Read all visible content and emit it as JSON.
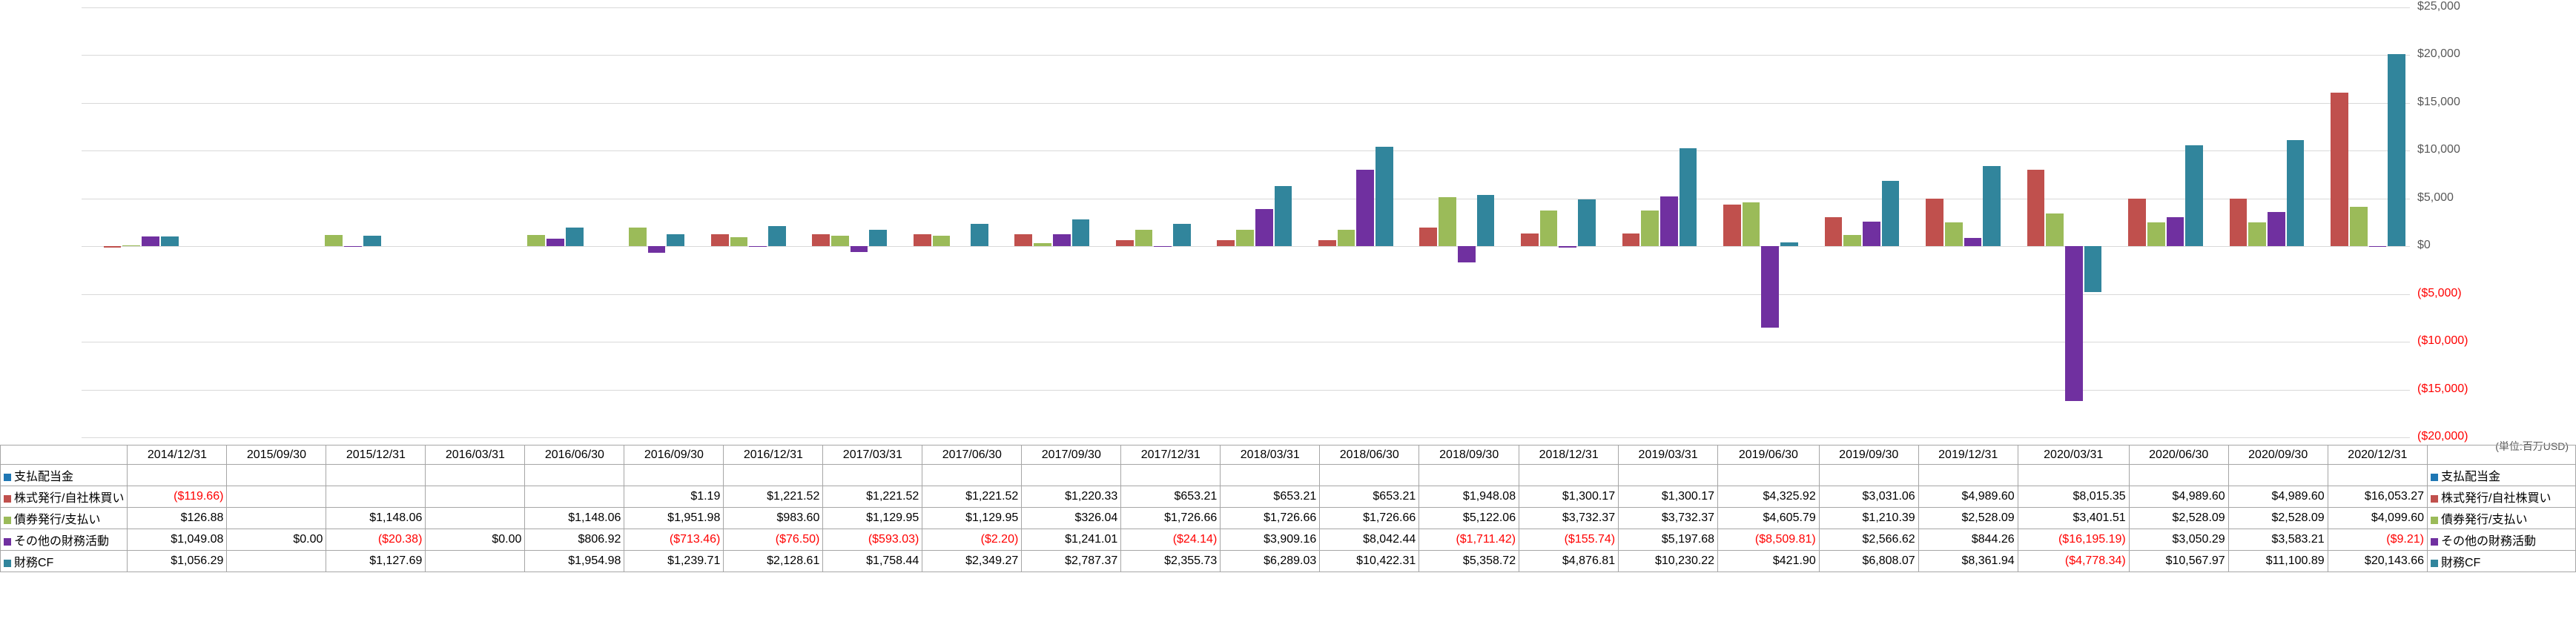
{
  "unit_label": "(単位:百万USD)",
  "y": {
    "min": -20000,
    "max": 25000,
    "step": 5000
  },
  "colors": {
    "s1": "#1f77b4",
    "s2": "#c0504d",
    "s3": "#9bbb59",
    "s4": "#7030a0",
    "s5": "#31859c",
    "grid": "#d9d9d9"
  },
  "series": [
    {
      "key": "s1",
      "label": "支払配当金"
    },
    {
      "key": "s2",
      "label": "株式発行/自社株買い"
    },
    {
      "key": "s3",
      "label": "債券発行/支払い"
    },
    {
      "key": "s4",
      "label": "その他の財務活動"
    },
    {
      "key": "s5",
      "label": "財務CF"
    }
  ],
  "periods": [
    "2014/12/31",
    "2015/09/30",
    "2015/12/31",
    "2016/03/31",
    "2016/06/30",
    "2016/09/30",
    "2016/12/31",
    "2017/03/31",
    "2017/06/30",
    "2017/09/30",
    "2017/12/31",
    "2018/03/31",
    "2018/06/30",
    "2018/09/30",
    "2018/12/31",
    "2019/03/31",
    "2019/06/30",
    "2019/09/30",
    "2019/12/31",
    "2020/03/31",
    "2020/06/30",
    "2020/09/30",
    "2020/12/31"
  ],
  "rows": {
    "s1": [
      null,
      null,
      null,
      null,
      null,
      null,
      null,
      null,
      null,
      null,
      null,
      null,
      null,
      null,
      null,
      null,
      null,
      null,
      null,
      null,
      null,
      null,
      null
    ],
    "s2": [
      -119.66,
      null,
      null,
      null,
      null,
      1.19,
      1221.52,
      1221.52,
      1221.52,
      1220.33,
      653.21,
      653.21,
      653.21,
      1948.08,
      1300.17,
      1300.17,
      4325.92,
      3031.06,
      4989.6,
      8015.35,
      4989.6,
      4989.6,
      16053.27
    ],
    "s3": [
      126.88,
      null,
      1148.06,
      null,
      1148.06,
      1951.98,
      983.6,
      1129.95,
      1129.95,
      326.04,
      1726.66,
      1726.66,
      1726.66,
      5122.06,
      3732.37,
      3732.37,
      4605.79,
      1210.39,
      2528.09,
      3401.51,
      2528.09,
      2528.09,
      4099.6
    ],
    "s4": [
      1049.08,
      0.0,
      -20.38,
      0.0,
      806.92,
      -713.46,
      -76.5,
      -593.03,
      -2.2,
      1241.01,
      -24.14,
      3909.16,
      8042.44,
      -1711.42,
      -155.74,
      5197.68,
      -8509.81,
      2566.62,
      844.26,
      -16195.19,
      3050.29,
      3583.21,
      -9.21
    ],
    "s5": [
      1056.29,
      null,
      1127.69,
      null,
      1954.98,
      1239.71,
      2128.61,
      1758.44,
      2349.27,
      2787.37,
      2355.73,
      6289.03,
      10422.31,
      5358.72,
      4876.81,
      10230.22,
      421.9,
      6808.07,
      8361.94,
      -4778.34,
      10567.97,
      11100.89,
      20143.66
    ]
  }
}
